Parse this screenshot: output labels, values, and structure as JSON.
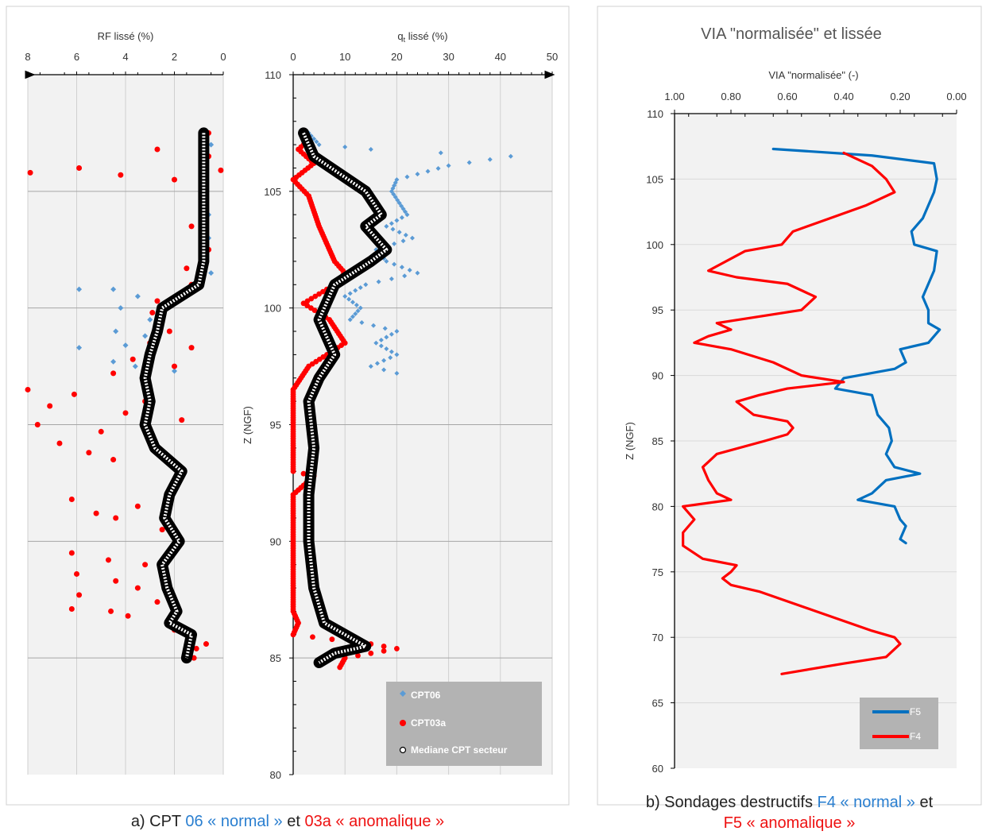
{
  "chart_data": [
    {
      "type": "scatter",
      "panel": "a-left",
      "xlabel": "RF lissé (%)",
      "ylabel": "",
      "xlim": [
        8,
        0
      ],
      "ylim": [
        80,
        110
      ],
      "x_ticks": [
        "8",
        "6",
        "4",
        "2",
        "0"
      ],
      "series": [
        {
          "name": "CPT06",
          "color": "#5b9bd5",
          "points": [
            [
              0.7,
              107.5
            ],
            [
              0.5,
              107
            ],
            [
              0.7,
              106
            ],
            [
              0.7,
              105
            ],
            [
              0.6,
              104
            ],
            [
              0.6,
              103
            ],
            [
              0.7,
              102
            ],
            [
              0.5,
              101.5
            ],
            [
              5.9,
              100.8
            ],
            [
              4.5,
              100.8
            ],
            [
              3.5,
              100.5
            ],
            [
              4.2,
              100
            ],
            [
              3.0,
              99.5
            ],
            [
              4.4,
              99
            ],
            [
              3.2,
              98.8
            ],
            [
              5.9,
              98.3
            ],
            [
              4.0,
              98.4
            ],
            [
              3.0,
              98.2
            ],
            [
              4.5,
              97.7
            ],
            [
              3.6,
              97.5
            ],
            [
              2.0,
              97.3
            ]
          ]
        },
        {
          "name": "CPT03a",
          "color": "#ff0000",
          "points": [
            [
              0.6,
              107.5
            ],
            [
              2.7,
              106.8
            ],
            [
              0.6,
              106.5
            ],
            [
              7.9,
              105.8
            ],
            [
              5.9,
              106
            ],
            [
              4.2,
              105.7
            ],
            [
              2.0,
              105.5
            ],
            [
              0.1,
              105.9
            ],
            [
              1.3,
              103.5
            ],
            [
              0.6,
              102.5
            ],
            [
              1.5,
              101.7
            ],
            [
              1.3,
              101
            ],
            [
              2.7,
              100.3
            ],
            [
              2.9,
              99.8
            ],
            [
              2.2,
              99
            ],
            [
              3.0,
              98.5
            ],
            [
              1.3,
              98.3
            ],
            [
              3.7,
              97.8
            ],
            [
              2.0,
              97.5
            ],
            [
              4.5,
              97.2
            ],
            [
              8.0,
              96.5
            ],
            [
              6.1,
              96.3
            ],
            [
              3.2,
              96
            ],
            [
              7.1,
              95.8
            ],
            [
              4.0,
              95.5
            ],
            [
              1.7,
              95.2
            ],
            [
              7.6,
              95
            ],
            [
              5.0,
              94.7
            ],
            [
              3.0,
              94.5
            ],
            [
              6.7,
              94.2
            ],
            [
              5.5,
              93.8
            ],
            [
              4.5,
              93.5
            ],
            [
              1.8,
              93
            ],
            [
              6.2,
              91.8
            ],
            [
              3.5,
              91.5
            ],
            [
              5.2,
              91.2
            ],
            [
              4.4,
              91
            ],
            [
              2.5,
              90.5
            ],
            [
              6.2,
              89.5
            ],
            [
              4.7,
              89.2
            ],
            [
              3.2,
              89
            ],
            [
              6.0,
              88.6
            ],
            [
              4.4,
              88.3
            ],
            [
              3.5,
              88
            ],
            [
              5.9,
              87.7
            ],
            [
              2.7,
              87.4
            ],
            [
              6.2,
              87.1
            ],
            [
              4.6,
              87
            ],
            [
              3.9,
              86.8
            ],
            [
              2.0,
              86.2
            ],
            [
              0.7,
              85.6
            ],
            [
              1.1,
              85.4
            ],
            [
              1.2,
              85.0
            ]
          ]
        },
        {
          "name": "Mediane CPT secteur",
          "color": "#ffffff",
          "points": [
            [
              0.8,
              107.5
            ],
            [
              0.8,
              106
            ],
            [
              0.8,
              104
            ],
            [
              0.8,
              102
            ],
            [
              1.0,
              101
            ],
            [
              2.5,
              100
            ],
            [
              2.7,
              99
            ],
            [
              3.0,
              98
            ],
            [
              3.2,
              97
            ],
            [
              3.0,
              96
            ],
            [
              3.2,
              95
            ],
            [
              2.8,
              94
            ],
            [
              1.7,
              93
            ],
            [
              2.2,
              92
            ],
            [
              2.4,
              91
            ],
            [
              1.8,
              90
            ],
            [
              2.5,
              89
            ],
            [
              2.3,
              88
            ],
            [
              1.9,
              87
            ],
            [
              2.2,
              86.5
            ],
            [
              1.3,
              86
            ],
            [
              1.4,
              85.5
            ],
            [
              1.5,
              85
            ]
          ]
        }
      ]
    },
    {
      "type": "scatter",
      "panel": "a-right",
      "xlabel_main": "q",
      "xlabel_sub": "t",
      "xlabel_rest": " lissé (%)",
      "ylabel": "Z (NGF)",
      "xlim": [
        0,
        50
      ],
      "ylim": [
        80,
        110
      ],
      "x_ticks": [
        "0",
        "10",
        "20",
        "30",
        "40",
        "50"
      ],
      "y_ticks": [
        "80",
        "85",
        "90",
        "95",
        "100",
        "105",
        "110"
      ],
      "legend": [
        "CPT06",
        "CPT03a",
        "Mediane CPT secteur"
      ],
      "series": [
        {
          "name": "CPT06",
          "color": "#5b9bd5",
          "points": [
            [
              3,
              107.5
            ],
            [
              5,
              107
            ],
            [
              15,
              106.8
            ],
            [
              42,
              106.5
            ],
            [
              30,
              106.1
            ],
            [
              20,
              105.5
            ],
            [
              19,
              105
            ],
            [
              22,
              104
            ],
            [
              18,
              103.5
            ],
            [
              23,
              103
            ],
            [
              16,
              102.5
            ],
            [
              18,
              102
            ],
            [
              24,
              101.5
            ],
            [
              14,
              101
            ],
            [
              10,
              100.5
            ],
            [
              13,
              100
            ],
            [
              11,
              99.5
            ],
            [
              20,
              99
            ],
            [
              16,
              98.5
            ],
            [
              20,
              98
            ],
            [
              15,
              97.5
            ],
            [
              20,
              97.2
            ]
          ]
        },
        {
          "name": "CPT03a",
          "color": "#ff0000",
          "points": [
            [
              3,
              107.2
            ],
            [
              1,
              106.8
            ],
            [
              4,
              106.2
            ],
            [
              0,
              105.5
            ],
            [
              3,
              104.8
            ],
            [
              5,
              103.5
            ],
            [
              8,
              102
            ],
            [
              10,
              101.5
            ],
            [
              8,
              101
            ],
            [
              2,
              100.2
            ],
            [
              7,
              99.5
            ],
            [
              10,
              98.5
            ],
            [
              3,
              97.5
            ],
            [
              0,
              96.5
            ],
            [
              0,
              95
            ],
            [
              0,
              94
            ],
            [
              0,
              93
            ],
            [
              4,
              92.8
            ],
            [
              0,
              92
            ],
            [
              0,
              91
            ],
            [
              0,
              90
            ],
            [
              0,
              89
            ],
            [
              0,
              88
            ],
            [
              0,
              87
            ],
            [
              1,
              86.5
            ],
            [
              0,
              86
            ],
            [
              15,
              85.6
            ],
            [
              20,
              85.4
            ],
            [
              10,
              85
            ],
            [
              9,
              84.6
            ]
          ]
        },
        {
          "name": "Mediane CPT secteur",
          "color": "#ffffff",
          "points": [
            [
              2,
              107.5
            ],
            [
              4,
              106.5
            ],
            [
              14,
              105
            ],
            [
              17,
              104
            ],
            [
              14,
              103.5
            ],
            [
              18,
              102.5
            ],
            [
              15,
              102
            ],
            [
              8,
              101
            ],
            [
              5,
              99.5
            ],
            [
              8,
              98
            ],
            [
              5,
              97
            ],
            [
              3,
              96
            ],
            [
              4,
              94
            ],
            [
              3,
              92
            ],
            [
              3,
              90
            ],
            [
              4,
              88
            ],
            [
              6,
              86.5
            ],
            [
              14,
              85.5
            ],
            [
              8,
              85.2
            ],
            [
              5,
              84.8
            ]
          ]
        }
      ]
    },
    {
      "type": "line",
      "panel": "b",
      "title": "VIA \"normalisée\" et lissée",
      "xlabel": "VIA \"normalisée\" (-)",
      "ylabel": "Z (NGF)",
      "xlim": [
        1.0,
        0.0
      ],
      "ylim": [
        60,
        110
      ],
      "x_ticks": [
        "1.00",
        "0.80",
        "0.60",
        "0.40",
        "0.20",
        "0.00"
      ],
      "y_ticks": [
        "60",
        "65",
        "70",
        "75",
        "80",
        "85",
        "90",
        "95",
        "100",
        "105",
        "110"
      ],
      "legend": [
        "F5",
        "F4"
      ],
      "series": [
        {
          "name": "F5",
          "color": "#0070c0",
          "points": [
            [
              0.65,
              107.3
            ],
            [
              0.3,
              106.8
            ],
            [
              0.08,
              106.2
            ],
            [
              0.07,
              105
            ],
            [
              0.08,
              104
            ],
            [
              0.1,
              103
            ],
            [
              0.12,
              102
            ],
            [
              0.16,
              101
            ],
            [
              0.15,
              100
            ],
            [
              0.07,
              99.5
            ],
            [
              0.08,
              98
            ],
            [
              0.1,
              97
            ],
            [
              0.12,
              96
            ],
            [
              0.1,
              95
            ],
            [
              0.1,
              94
            ],
            [
              0.06,
              93.5
            ],
            [
              0.1,
              92.5
            ],
            [
              0.2,
              92
            ],
            [
              0.18,
              91
            ],
            [
              0.22,
              90.5
            ],
            [
              0.4,
              89.8
            ],
            [
              0.43,
              89
            ],
            [
              0.3,
              88.5
            ],
            [
              0.28,
              87
            ],
            [
              0.24,
              86
            ],
            [
              0.23,
              85
            ],
            [
              0.25,
              84
            ],
            [
              0.22,
              83
            ],
            [
              0.13,
              82.5
            ],
            [
              0.25,
              82
            ],
            [
              0.3,
              81
            ],
            [
              0.35,
              80.5
            ],
            [
              0.22,
              80
            ],
            [
              0.2,
              79
            ],
            [
              0.18,
              78.5
            ],
            [
              0.2,
              77.5
            ],
            [
              0.18,
              77.2
            ]
          ]
        },
        {
          "name": "F4",
          "color": "#ff0000",
          "points": [
            [
              0.4,
              107
            ],
            [
              0.35,
              106.5
            ],
            [
              0.3,
              106
            ],
            [
              0.25,
              105
            ],
            [
              0.22,
              104
            ],
            [
              0.32,
              103
            ],
            [
              0.45,
              102
            ],
            [
              0.58,
              101
            ],
            [
              0.62,
              100
            ],
            [
              0.75,
              99.5
            ],
            [
              0.88,
              98
            ],
            [
              0.78,
              97.5
            ],
            [
              0.6,
              97
            ],
            [
              0.5,
              96
            ],
            [
              0.55,
              95
            ],
            [
              0.85,
              94
            ],
            [
              0.8,
              93.5
            ],
            [
              0.88,
              93
            ],
            [
              0.93,
              92.5
            ],
            [
              0.8,
              92
            ],
            [
              0.65,
              91
            ],
            [
              0.55,
              90
            ],
            [
              0.4,
              89.5
            ],
            [
              0.6,
              89
            ],
            [
              0.7,
              88.5
            ],
            [
              0.78,
              88
            ],
            [
              0.72,
              87
            ],
            [
              0.6,
              86.5
            ],
            [
              0.58,
              86
            ],
            [
              0.6,
              85.5
            ],
            [
              0.68,
              85
            ],
            [
              0.85,
              84
            ],
            [
              0.9,
              83
            ],
            [
              0.88,
              82
            ],
            [
              0.85,
              81
            ],
            [
              0.8,
              80.5
            ],
            [
              0.97,
              80
            ],
            [
              0.93,
              79
            ],
            [
              0.97,
              78
            ],
            [
              0.97,
              77
            ],
            [
              0.9,
              76
            ],
            [
              0.78,
              75.5
            ],
            [
              0.8,
              75
            ],
            [
              0.83,
              74.5
            ],
            [
              0.8,
              74
            ],
            [
              0.7,
              73.5
            ],
            [
              0.5,
              72
            ],
            [
              0.3,
              70.5
            ],
            [
              0.22,
              70
            ],
            [
              0.2,
              69.5
            ],
            [
              0.25,
              68.5
            ],
            [
              0.4,
              68
            ],
            [
              0.62,
              67.2
            ]
          ]
        }
      ]
    }
  ],
  "captions": {
    "a": {
      "prefix": "a) CPT ",
      "n1": "06",
      "q1": " « normal » ",
      "et": "et ",
      "n2": "03a",
      "q2": " « anomalique »"
    },
    "b": {
      "line1_prefix": "b) Sondages destructifs ",
      "f4": "F4 « normal »",
      "et": " et",
      "f5": "F5 « anomalique »"
    }
  }
}
